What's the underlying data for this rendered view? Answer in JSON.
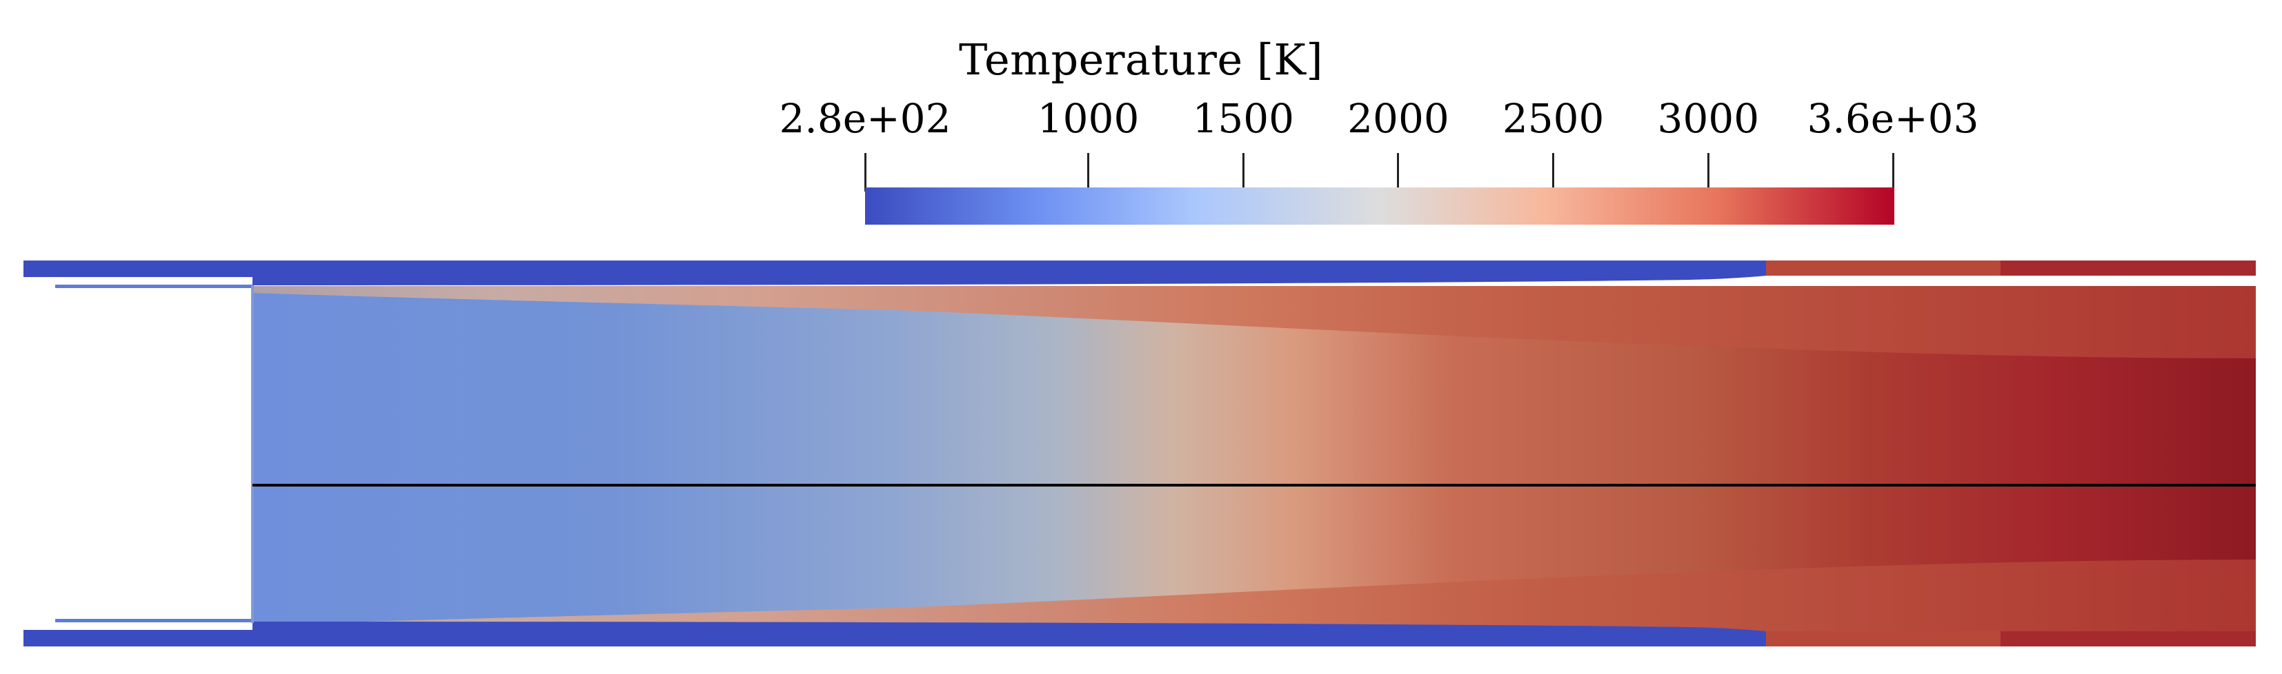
{
  "legend": {
    "title": "Temperature [K]",
    "min_value": 280,
    "max_value": 3600,
    "ticks": [
      {
        "label": "2.8e+02",
        "value": 280
      },
      {
        "label": "1000",
        "value": 1000
      },
      {
        "label": "1500",
        "value": 1500
      },
      {
        "label": "2000",
        "value": 2000
      },
      {
        "label": "2500",
        "value": 2500
      },
      {
        "label": "3000",
        "value": 3000
      },
      {
        "label": "3.6e+03",
        "value": 3600
      }
    ],
    "colormap": [
      "#3b4cc0",
      "#6f92f3",
      "#aac7fd",
      "#dddddd",
      "#f7b89c",
      "#e7745b",
      "#b40426"
    ]
  },
  "field": {
    "wall_color": "#3b4cc0",
    "background_color": "#ffffff",
    "axis_line_color": "#000000"
  }
}
